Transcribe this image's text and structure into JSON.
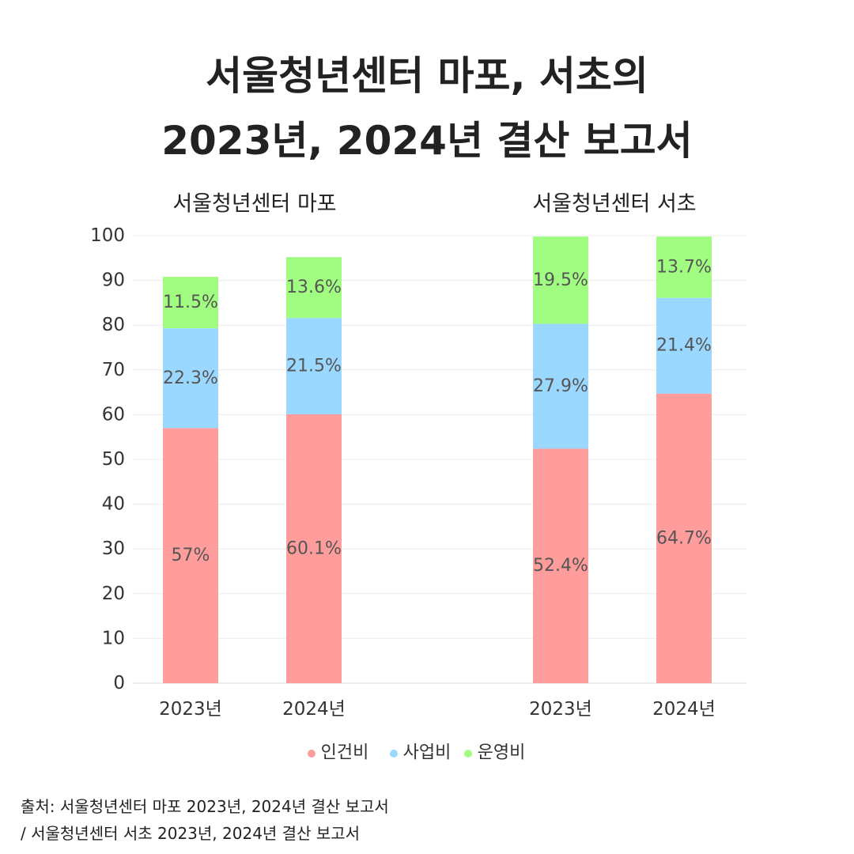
{
  "title_line1": "서울청년센터 마포, 서초의",
  "title_line2": "2023년, 2024년 결산 보고서",
  "source_line1": "출처: 서울청년센터 마포 2023년, 2024년 결산 보고서",
  "source_line2": "/ 서울청년센터 서초 2023년, 2024년 결산 보고서",
  "chart_data": {
    "type": "bar",
    "stacked": true,
    "ylim": [
      0,
      100
    ],
    "yticks": [
      0,
      10,
      20,
      30,
      40,
      50,
      60,
      70,
      80,
      90,
      100
    ],
    "grid": true,
    "legend_position": "bottom",
    "groups": [
      {
        "title": "서울청년센터 마포",
        "categories": [
          "2023년",
          "2024년"
        ],
        "series": [
          {
            "name": "인건비",
            "color": "#ff9c9c",
            "values": [
              57,
              60.1
            ],
            "labels": [
              "57%",
              "60.1%"
            ]
          },
          {
            "name": "사업비",
            "color": "#9bd8ff",
            "values": [
              22.3,
              21.5
            ],
            "labels": [
              "22.3%",
              "21.5%"
            ]
          },
          {
            "name": "운영비",
            "color": "#a1fd82",
            "values": [
              11.5,
              13.6
            ],
            "labels": [
              "11.5%",
              "13.6%"
            ]
          }
        ]
      },
      {
        "title": "서울청년센터 서초",
        "categories": [
          "2023년",
          "2024년"
        ],
        "series": [
          {
            "name": "인건비",
            "color": "#ff9c9c",
            "values": [
              52.4,
              64.7
            ],
            "labels": [
              "52.4%",
              "64.7%"
            ]
          },
          {
            "name": "사업비",
            "color": "#9bd8ff",
            "values": [
              27.9,
              21.4
            ],
            "labels": [
              "27.9%",
              "21.4%"
            ]
          },
          {
            "name": "운영비",
            "color": "#a1fd82",
            "values": [
              19.5,
              13.7
            ],
            "labels": [
              "19.5%",
              "13.7%"
            ]
          }
        ]
      }
    ],
    "legend": [
      {
        "name": "인건비",
        "color": "#ff9c9c"
      },
      {
        "name": "사업비",
        "color": "#9bd8ff"
      },
      {
        "name": "운영비",
        "color": "#a1fd82"
      }
    ]
  }
}
